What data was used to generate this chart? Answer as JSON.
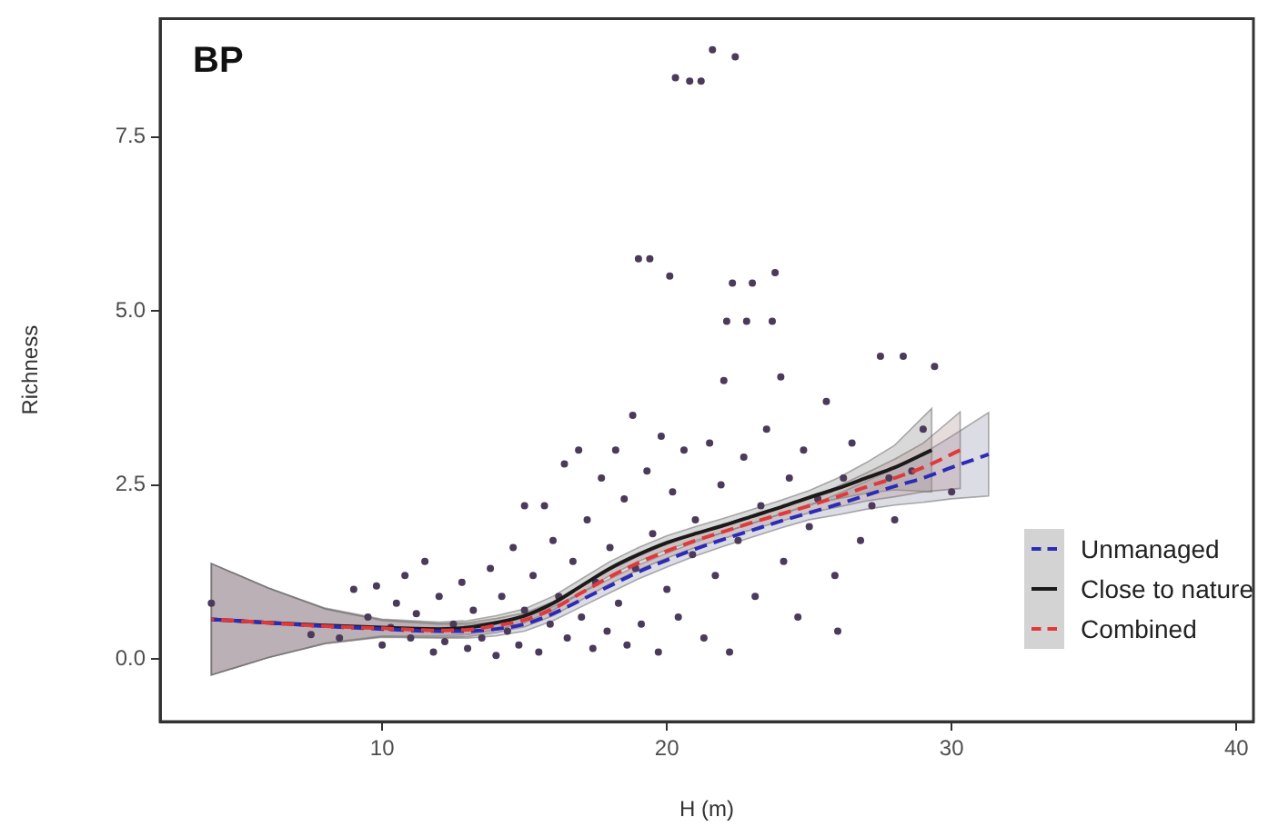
{
  "chart_data": {
    "type": "scatter",
    "title": "BP",
    "xlabel": "H (m)",
    "ylabel": "Richness",
    "xlim": [
      2.2,
      40.6
    ],
    "xticks": [
      10,
      20,
      30,
      40
    ],
    "ylim": [
      -0.9,
      9.2
    ],
    "yticks": [
      {
        "value": 0,
        "label": "0.0"
      },
      2.5,
      {
        "value": 5,
        "label": "5.0"
      },
      7.5
    ],
    "grid": false,
    "legend": "bottom right",
    "series": [
      {
        "type": "scatter",
        "color": "#4b3a5a",
        "marker": "circle",
        "x": [
          4,
          7.5,
          8.5,
          9,
          9.5,
          9.8,
          10,
          10.3,
          10.5,
          10.8,
          11,
          11.2,
          11.5,
          11.8,
          12,
          12.2,
          12.5,
          12.8,
          13,
          13.2,
          13.5,
          13.8,
          14,
          14.2,
          14.4,
          14.6,
          14.8,
          15,
          15,
          15.3,
          15.5,
          15.7,
          15.9,
          16,
          16.2,
          16.4,
          16.5,
          16.7,
          16.9,
          17,
          17.2,
          17.4,
          17.5,
          17.7,
          17.9,
          18,
          18.2,
          18.3,
          18.5,
          18.6,
          18.8,
          18.9,
          19,
          19.1,
          19.3,
          19.4,
          19.5,
          19.7,
          19.8,
          20,
          20.1,
          20.2,
          20.3,
          20.4,
          20.6,
          20.8,
          20.9,
          21,
          21.2,
          21.3,
          21.5,
          21.6,
          21.7,
          21.9,
          22,
          22.1,
          22.2,
          22.3,
          22.4,
          22.5,
          22.7,
          22.8,
          23,
          23.1,
          23.3,
          23.5,
          23.7,
          23.8,
          24,
          24.1,
          24.3,
          24.6,
          24.8,
          25,
          25.3,
          25.6,
          25.9,
          26,
          26.2,
          26.5,
          26.8,
          27.2,
          27.5,
          27.8,
          28,
          28.3,
          28.6,
          29,
          29.4,
          30
        ],
        "values": [
          0.8,
          0.35,
          0.3,
          1.0,
          0.6,
          1.05,
          0.2,
          0.45,
          0.8,
          1.2,
          0.3,
          0.65,
          1.4,
          0.1,
          0.9,
          0.25,
          0.5,
          1.1,
          0.15,
          0.7,
          0.3,
          1.3,
          0.05,
          0.9,
          0.4,
          1.6,
          0.2,
          2.2,
          0.7,
          1.2,
          0.1,
          2.2,
          0.5,
          1.7,
          0.9,
          2.8,
          0.3,
          1.4,
          3.0,
          0.6,
          2.0,
          0.15,
          1.1,
          2.6,
          0.4,
          1.6,
          3.0,
          0.8,
          2.3,
          0.2,
          3.5,
          1.3,
          5.75,
          0.5,
          2.7,
          5.75,
          1.8,
          0.1,
          3.2,
          1.0,
          5.5,
          2.4,
          8.35,
          0.6,
          3.0,
          8.3,
          1.5,
          2.0,
          8.3,
          0.3,
          3.1,
          8.75,
          1.2,
          2.5,
          4.0,
          4.85,
          0.1,
          5.4,
          8.65,
          1.7,
          2.9,
          4.85,
          5.4,
          0.9,
          2.2,
          3.3,
          4.85,
          5.55,
          4.05,
          1.4,
          2.6,
          0.6,
          3.0,
          1.9,
          2.3,
          3.7,
          1.2,
          0.4,
          2.6,
          3.1,
          1.7,
          2.2,
          4.35,
          2.6,
          2.0,
          4.35,
          2.7,
          3.3,
          4.2,
          2.4
        ]
      },
      {
        "type": "line",
        "name": "Unmanaged",
        "color": "#2b2bb5",
        "line_style": "dashed",
        "x": [
          4,
          6,
          8,
          10,
          12,
          13,
          14,
          15,
          16,
          17,
          18,
          19,
          20,
          21,
          22,
          23,
          24,
          25,
          26,
          27,
          28,
          29,
          30,
          31.3
        ],
        "values": [
          0.57,
          0.52,
          0.47,
          0.43,
          0.4,
          0.4,
          0.43,
          0.5,
          0.65,
          0.85,
          1.05,
          1.25,
          1.42,
          1.58,
          1.72,
          1.85,
          1.98,
          2.1,
          2.22,
          2.35,
          2.48,
          2.6,
          2.75,
          2.94
        ],
        "lower": [
          -0.23,
          0.02,
          0.22,
          0.31,
          0.3,
          0.3,
          0.33,
          0.4,
          0.55,
          0.75,
          0.95,
          1.15,
          1.32,
          1.48,
          1.62,
          1.75,
          1.88,
          2.0,
          2.07,
          2.15,
          2.21,
          2.25,
          2.3,
          2.34
        ],
        "upper": [
          1.37,
          1.02,
          0.72,
          0.55,
          0.5,
          0.5,
          0.53,
          0.6,
          0.75,
          0.95,
          1.15,
          1.35,
          1.52,
          1.68,
          1.82,
          1.95,
          2.08,
          2.2,
          2.37,
          2.55,
          2.75,
          2.95,
          3.2,
          3.54
        ]
      },
      {
        "type": "line",
        "name": "Close to nature",
        "color": "#1a1a1a",
        "line_style": "solid",
        "x": [
          4,
          6,
          8,
          10,
          12,
          13,
          14,
          15,
          16,
          17,
          18,
          19,
          20,
          21,
          22,
          23,
          24,
          25,
          26,
          27,
          28,
          29.3
        ],
        "values": [
          0.57,
          0.52,
          0.48,
          0.45,
          0.43,
          0.45,
          0.52,
          0.62,
          0.8,
          1.05,
          1.3,
          1.5,
          1.67,
          1.8,
          1.92,
          2.05,
          2.18,
          2.32,
          2.45,
          2.6,
          2.75,
          3.0
        ],
        "lower": [
          -0.23,
          0.02,
          0.23,
          0.33,
          0.33,
          0.35,
          0.42,
          0.52,
          0.7,
          0.95,
          1.2,
          1.4,
          1.57,
          1.7,
          1.82,
          1.95,
          2.08,
          2.22,
          2.3,
          2.38,
          2.43,
          2.4
        ],
        "upper": [
          1.37,
          1.02,
          0.73,
          0.57,
          0.53,
          0.55,
          0.62,
          0.72,
          0.9,
          1.15,
          1.4,
          1.6,
          1.77,
          1.9,
          2.02,
          2.15,
          2.28,
          2.42,
          2.6,
          2.82,
          3.07,
          3.6
        ]
      },
      {
        "type": "line",
        "name": "Combined",
        "color": "#e0393b",
        "line_style": "dashed",
        "x": [
          4,
          6,
          8,
          10,
          12,
          13,
          14,
          15,
          16,
          17,
          18,
          19,
          20,
          21,
          22,
          23,
          24,
          25,
          26,
          27,
          28,
          29,
          30.3
        ],
        "values": [
          0.57,
          0.52,
          0.47,
          0.44,
          0.41,
          0.42,
          0.48,
          0.56,
          0.72,
          0.95,
          1.18,
          1.38,
          1.55,
          1.7,
          1.83,
          1.96,
          2.08,
          2.2,
          2.33,
          2.47,
          2.6,
          2.75,
          3.0
        ],
        "lower": [
          -0.23,
          0.02,
          0.22,
          0.32,
          0.31,
          0.32,
          0.38,
          0.46,
          0.62,
          0.85,
          1.08,
          1.28,
          1.45,
          1.6,
          1.73,
          1.86,
          1.98,
          2.1,
          2.18,
          2.27,
          2.33,
          2.4,
          2.45
        ],
        "upper": [
          1.37,
          1.02,
          0.72,
          0.56,
          0.51,
          0.52,
          0.58,
          0.66,
          0.82,
          1.05,
          1.28,
          1.48,
          1.65,
          1.8,
          1.93,
          2.06,
          2.18,
          2.3,
          2.48,
          2.67,
          2.87,
          3.1,
          3.55
        ]
      }
    ]
  }
}
